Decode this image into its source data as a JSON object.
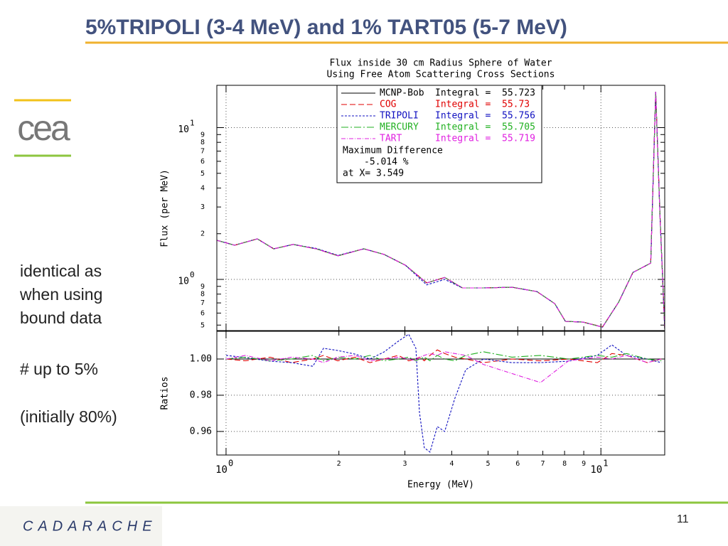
{
  "slide": {
    "title": "5%TRIPOLI (3-4 MeV) and 1% TART05 (5-7 MeV)",
    "notes": [
      "identical as",
      "when using",
      "bound data",
      "# up to 5%",
      "(initially 80%)"
    ],
    "logo_top": "cea",
    "logo_bottom": "CADARACHE",
    "page_number": 11
  },
  "chart_data": [
    {
      "type": "line",
      "title": [
        "Flux inside 30 cm Radius Sphere of Water",
        "Using Free Atom Scattering Cross Sections"
      ],
      "ylabel": "Flux (per MeV)",
      "logx": true,
      "logy": true,
      "grid": true,
      "xlim": [
        0.945,
        14.8
      ],
      "ylim": [
        0.46,
        19
      ],
      "yticks": [
        {
          "value": 0.5,
          "label": "5"
        },
        {
          "value": 0.6,
          "label": "6"
        },
        {
          "value": 0.7,
          "label": "7"
        },
        {
          "value": 0.8,
          "label": "8"
        },
        {
          "value": 0.9,
          "label": "9"
        },
        {
          "value": 1,
          "label": "10",
          "power": "0"
        },
        2,
        3,
        4,
        5,
        6,
        7,
        8,
        9,
        {
          "value": 10,
          "label": "10",
          "power": "1"
        }
      ],
      "x": [
        0.945,
        1.054,
        1.212,
        1.34,
        1.51,
        1.74,
        1.99,
        2.33,
        2.64,
        3.01,
        3.43,
        3.83,
        4.27,
        4.86,
        5.79,
        6.75,
        7.53,
        8.04,
        8.97,
        10.1,
        11.15,
        12.17,
        13.58,
        14.0,
        14.37,
        14.8
      ],
      "integral_label": "Integral =",
      "annotations": [
        "Maximum Difference",
        "-5.014 %",
        "at X= 3.549"
      ],
      "series": [
        {
          "name": "MCNP-Bob",
          "color": "#000000",
          "dash": "none",
          "integral": 55.723,
          "values": [
            1.81,
            1.68,
            1.85,
            1.59,
            1.7,
            1.59,
            1.43,
            1.59,
            1.46,
            1.24,
            0.948,
            1.03,
            0.879,
            0.879,
            0.888,
            0.832,
            0.692,
            0.529,
            0.523,
            0.485,
            0.708,
            1.11,
            1.28,
            17.2,
            2.73,
            0.47
          ]
        },
        {
          "name": "COG",
          "color": "#e00000",
          "dash": "8 4",
          "integral": 55.73,
          "values": [
            1.81,
            1.68,
            1.85,
            1.59,
            1.7,
            1.59,
            1.43,
            1.59,
            1.46,
            1.24,
            0.95,
            1.03,
            0.879,
            0.879,
            0.888,
            0.832,
            0.692,
            0.529,
            0.523,
            0.487,
            0.708,
            1.11,
            1.28,
            17.2,
            2.73,
            0.47
          ]
        },
        {
          "name": "TRIPOLI",
          "color": "#1010c0",
          "dash": "3 2",
          "integral": 55.756,
          "values": [
            1.81,
            1.68,
            1.85,
            1.59,
            1.7,
            1.6,
            1.44,
            1.59,
            1.46,
            1.24,
            0.92,
            1.0,
            0.879,
            0.879,
            0.888,
            0.832,
            0.692,
            0.529,
            0.523,
            0.485,
            0.708,
            1.11,
            1.28,
            17.2,
            2.73,
            0.47
          ]
        },
        {
          "name": "MERCURY",
          "color": "#20b020",
          "dash": "10 3 2 3",
          "integral": 55.705,
          "values": [
            1.81,
            1.68,
            1.85,
            1.59,
            1.7,
            1.59,
            1.43,
            1.59,
            1.46,
            1.24,
            0.948,
            1.03,
            0.879,
            0.879,
            0.888,
            0.832,
            0.692,
            0.529,
            0.523,
            0.485,
            0.71,
            1.11,
            1.28,
            17.2,
            2.73,
            0.47
          ]
        },
        {
          "name": "TART",
          "color": "#e020e0",
          "dash": "6 2 1 2",
          "integral": 55.719,
          "values": [
            1.81,
            1.68,
            1.85,
            1.59,
            1.7,
            1.59,
            1.43,
            1.59,
            1.46,
            1.24,
            0.948,
            1.03,
            0.879,
            0.879,
            0.885,
            0.832,
            0.692,
            0.529,
            0.523,
            0.485,
            0.708,
            1.11,
            1.28,
            17.2,
            2.73,
            0.47
          ]
        }
      ]
    },
    {
      "type": "line",
      "ylabel": "Ratios",
      "xlabel": "Energy (MeV)",
      "logx": true,
      "grid": true,
      "xlim": [
        0.945,
        14.8
      ],
      "ylim": [
        0.947,
        1.0153
      ],
      "xticks": [
        {
          "value": 1,
          "label": "10",
          "power": "0"
        },
        2,
        3,
        4,
        5,
        6,
        7,
        8,
        9,
        {
          "value": 10,
          "label": "10",
          "power": "1"
        }
      ],
      "yticks": [
        0.96,
        0.98,
        {
          "value": 1,
          "label": "1.00"
        }
      ],
      "x": [
        1.0,
        1.125,
        1.311,
        1.495,
        1.704,
        1.82,
        1.985,
        2.21,
        2.42,
        2.64,
        2.88,
        3.07,
        3.21,
        3.28,
        3.38,
        3.5,
        3.66,
        3.83,
        4.08,
        4.36,
        4.86,
        5.79,
        6.9,
        8.2,
        9.78,
        10.7,
        11.7,
        13.3,
        14.5
      ],
      "series": [
        {
          "name": "MCNP-Bob",
          "color": "#000000",
          "dash": "none",
          "values": [
            1.0,
            1.0,
            1.0,
            1.0,
            1.0,
            1.0,
            1.0,
            1.0,
            1.0,
            1.0,
            1.0,
            1.0,
            1.0,
            1.0,
            1.0,
            1.0,
            1.0,
            1.0,
            1.0,
            1.0,
            1.0,
            1.0,
            1.0,
            1.0,
            1.0,
            1.0,
            1.0,
            1.0,
            1.0
          ]
        },
        {
          "name": "COG",
          "color": "#e00000",
          "dash": "8 4",
          "values": [
            1.0,
            0.999,
            1.001,
            0.998,
            1.0,
            1.002,
            0.999,
            1.001,
            0.998,
            1.0,
            1.002,
            0.999,
            1.0,
            1.001,
            0.999,
            1.002,
            1.005,
            1.003,
            1.001,
            1.0,
            0.998,
            1.0,
            0.999,
            1.0,
            0.998,
            1.003,
            1.002,
            0.998,
            1.0
          ]
        },
        {
          "name": "TRIPOLI",
          "color": "#1010c0",
          "dash": "3 2",
          "values": [
            1.002,
            1.0008,
            0.9988,
            0.998,
            0.996,
            1.0059,
            1.0047,
            1.0027,
            1.0,
            1.0039,
            1.0098,
            1.0137,
            1.0059,
            0.9706,
            0.951,
            0.9486,
            0.9627,
            0.96,
            0.9784,
            0.9941,
            1.0,
            0.998,
            0.998,
            0.9988,
            1.002,
            1.0078,
            1.002,
            1.0,
            0.998
          ]
        },
        {
          "name": "MERCURY",
          "color": "#20b020",
          "dash": "10 3 2 3",
          "values": [
            1.0,
            1.001,
            0.999,
            1.0,
            1.002,
            0.999,
            1.001,
            1.0,
            1.002,
            0.999,
            1.0,
            1.001,
            0.999,
            1.0,
            1.001,
            0.999,
            1.002,
            1.0,
            0.999,
            1.002,
            1.004,
            1.001,
            1.002,
            1.0,
            1.002,
            1.001,
            1.003,
            1.0,
            0.999
          ]
        },
        {
          "name": "TART",
          "color": "#e020e0",
          "dash": "6 2 1 2",
          "values": [
            1.0,
            1.002,
            0.999,
            1.001,
            1.0,
            0.998,
            1.001,
            1.002,
            0.999,
            1.0,
            1.001,
            1.0,
            0.999,
            1.001,
            1.002,
            1.003,
            1.002,
            1.004,
            1.003,
            1.002,
            0.997,
            0.992,
            0.987,
            0.999,
            1.001,
            1.0,
            1.002,
            0.998,
            1.0
          ]
        }
      ]
    }
  ]
}
